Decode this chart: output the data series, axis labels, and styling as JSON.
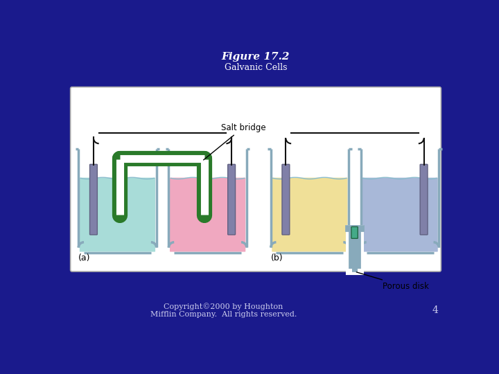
{
  "title": "Figure 17.2",
  "subtitle": "Galvanic Cells",
  "background_color": "#1a1a8c",
  "diagram_bg": "#ffffff",
  "title_color": "#ffffff",
  "subtitle_color": "#ffffff",
  "copyright_text": "Copyright©2000 by Houghton\nMifflin Company.  All rights reserved.",
  "page_number": "4",
  "label_a": "(a)",
  "label_b": "(b)",
  "salt_bridge_label": "Salt bridge",
  "porous_disk_label": "Porous disk",
  "liq_a_left": "#a8dcd8",
  "liq_a_right": "#f0a8c0",
  "liq_b_left": "#f0e098",
  "liq_b_right": "#a8b8d8",
  "salt_bridge_color": "#2a7a2a",
  "electrode_color": "#8080a8",
  "wire_color": "#111111",
  "beaker_outline": "#88aabb",
  "beaker_lw": 2.5,
  "tube_color": "#88aabb"
}
